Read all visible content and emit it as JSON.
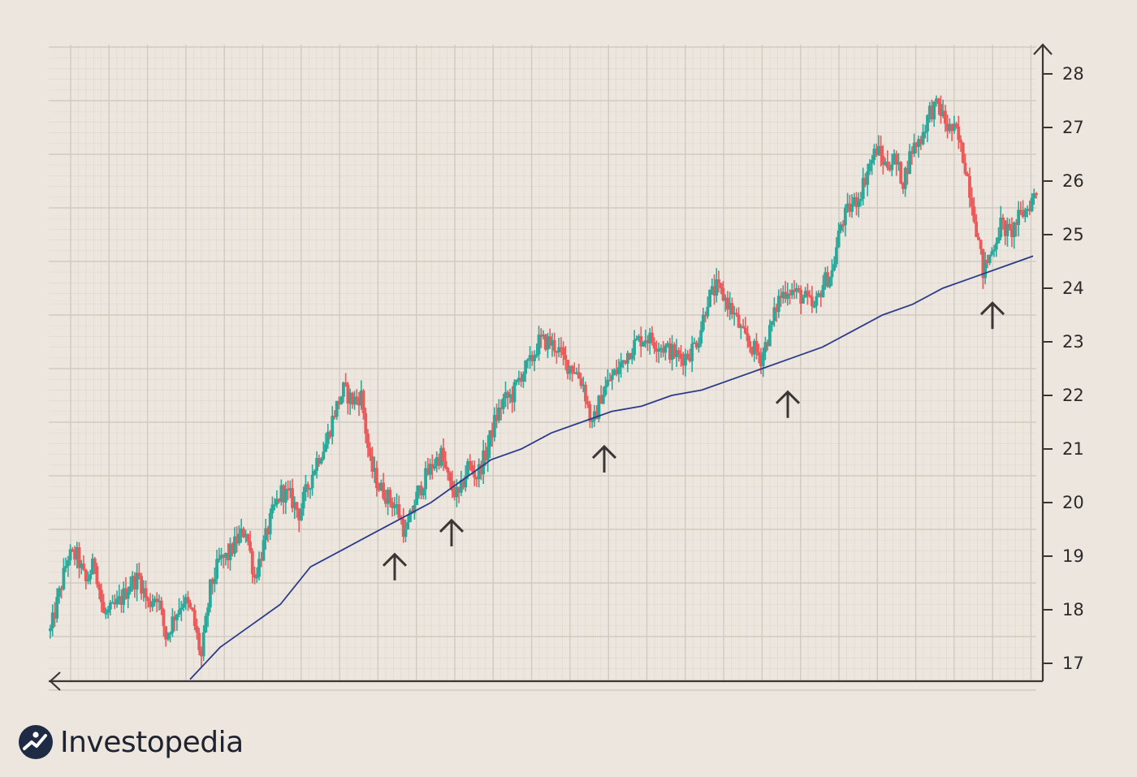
{
  "brand": {
    "name": "Investopedia",
    "logo_icon": "investopedia-logo-icon"
  },
  "colors": {
    "background": "#ece6de",
    "grid_fine": "#e0d9d0",
    "grid_major": "#d2cac1",
    "up_candle": "#2ba89a",
    "down_candle": "#e95a5a",
    "moving_average": "#2c3c8c",
    "axis": "#3a3636",
    "logo_circle": "#1f2b45"
  },
  "chart_data": {
    "type": "line",
    "title": "",
    "xlabel": "",
    "ylabel": "",
    "ylim": [
      16.7,
      28.6
    ],
    "y_ticks": [
      "17",
      "18",
      "19",
      "20",
      "21",
      "22",
      "23",
      "24",
      "25",
      "26",
      "27",
      "28"
    ],
    "grid": true,
    "series": [
      {
        "name": "",
        "style": "candlestick",
        "values": [
          17.6,
          18.3,
          19.0,
          19.0,
          18.5,
          18.9,
          17.9,
          18.0,
          18.2,
          18.5,
          18.6,
          18.1,
          18.3,
          17.5,
          17.9,
          18.2,
          17.9,
          17.1,
          18.4,
          18.9,
          19.0,
          19.3,
          19.5,
          18.6,
          19.2,
          19.8,
          20.2,
          20.1,
          19.8,
          20.3,
          20.8,
          21.1,
          21.7,
          22.1,
          21.9,
          22.0,
          20.7,
          20.3,
          20.1,
          19.9,
          19.4,
          20.0,
          20.4,
          20.7,
          20.9,
          20.3,
          20.1,
          20.7,
          20.5,
          20.9,
          21.5,
          21.9,
          22.0,
          22.4,
          22.6,
          23.0,
          23.0,
          22.9,
          22.6,
          22.5,
          22.2,
          21.4,
          22.0,
          22.3,
          22.5,
          22.8,
          23.0,
          23.1,
          23.0,
          22.9,
          22.8,
          22.7,
          22.8,
          23.1,
          23.8,
          24.0,
          23.8,
          23.5,
          23.1,
          22.9,
          22.7,
          23.2,
          23.8,
          24.0,
          23.9,
          23.8,
          23.6,
          24.1,
          24.3,
          25.2,
          25.5,
          25.7,
          26.2,
          26.6,
          26.3,
          26.4,
          26.0,
          26.6,
          26.8,
          27.3,
          27.4,
          27.0,
          26.9,
          26.3,
          25.4,
          24.3,
          24.7,
          25.2,
          25.0,
          25.3,
          25.5,
          25.8
        ]
      },
      {
        "name": "",
        "style": "moving-average",
        "values": [
          16.7,
          17.3,
          17.7,
          18.1,
          18.8,
          19.1,
          19.4,
          19.7,
          20.0,
          20.4,
          20.8,
          21.0,
          21.3,
          21.5,
          21.7,
          21.8,
          22.0,
          22.1,
          22.3,
          22.5,
          22.7,
          22.9,
          23.2,
          23.5,
          23.7,
          24.0,
          24.2,
          24.4,
          24.6
        ]
      }
    ],
    "annotations": [
      {
        "type": "up-arrow",
        "near": 19.3
      },
      {
        "type": "up-arrow",
        "near": 19.6
      },
      {
        "type": "up-arrow",
        "near": 21.0
      },
      {
        "type": "up-arrow",
        "near": 22.4
      },
      {
        "type": "up-arrow",
        "near": 24.2
      }
    ]
  }
}
